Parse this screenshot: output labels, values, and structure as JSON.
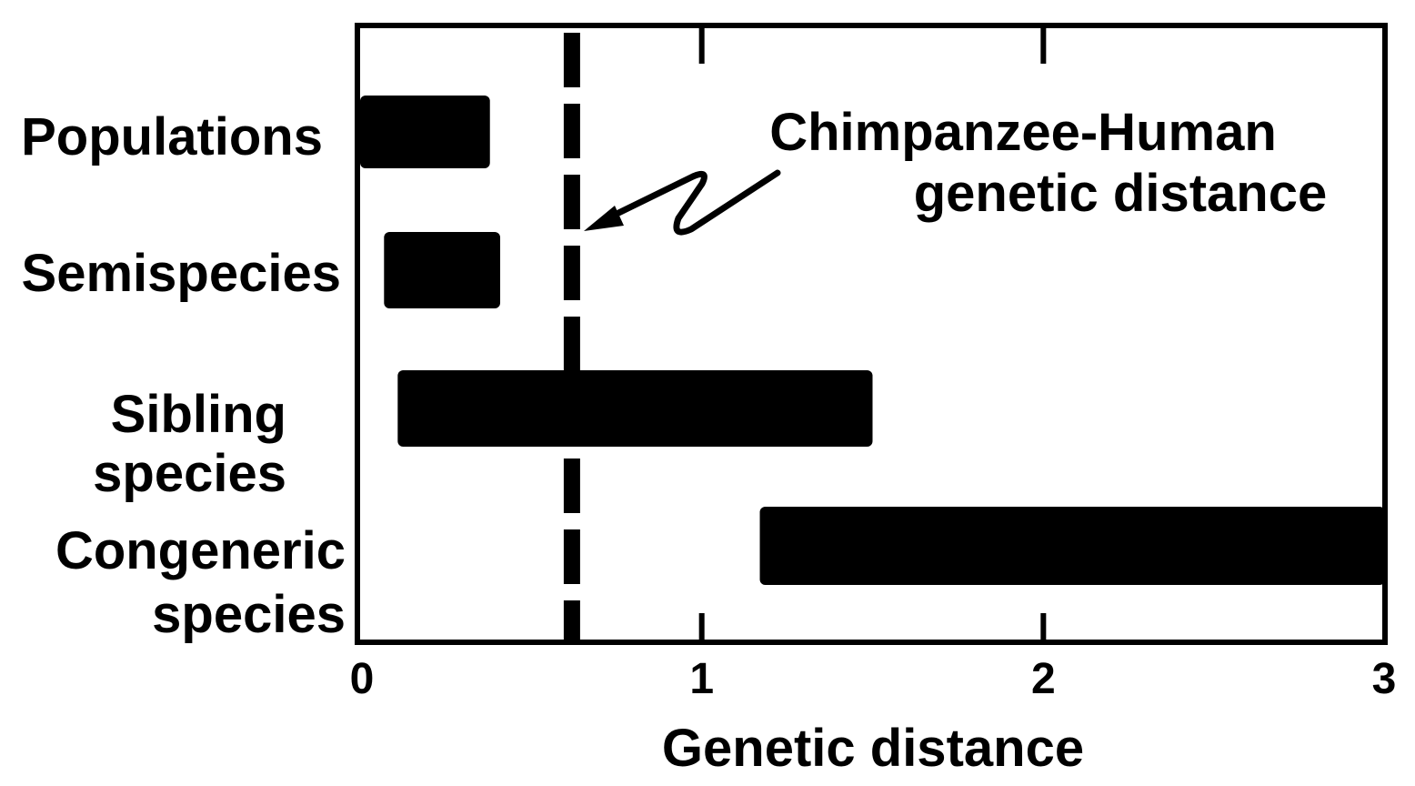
{
  "chart_data": {
    "type": "bar",
    "orientation": "horizontal-range",
    "xlabel": "Genetic distance",
    "xlim": [
      0,
      3
    ],
    "xticks": [
      "0",
      "1",
      "2",
      "3"
    ],
    "categories": [
      {
        "lines": [
          "Populations"
        ],
        "start": 0.0,
        "end": 0.38
      },
      {
        "lines": [
          "Semispecies"
        ],
        "start": 0.07,
        "end": 0.41
      },
      {
        "lines": [
          "Sibling",
          "species"
        ],
        "start": 0.11,
        "end": 1.5
      },
      {
        "lines": [
          "Congeneric",
          "species"
        ],
        "start": 1.17,
        "end": 3.0
      }
    ],
    "reference_line": {
      "x": 0.62,
      "style": "dashed",
      "annotation": [
        "Chimpanzee-Human",
        "genetic distance"
      ]
    },
    "colors": {
      "bars": "#000000",
      "line": "#000000",
      "background": "#ffffff"
    }
  }
}
